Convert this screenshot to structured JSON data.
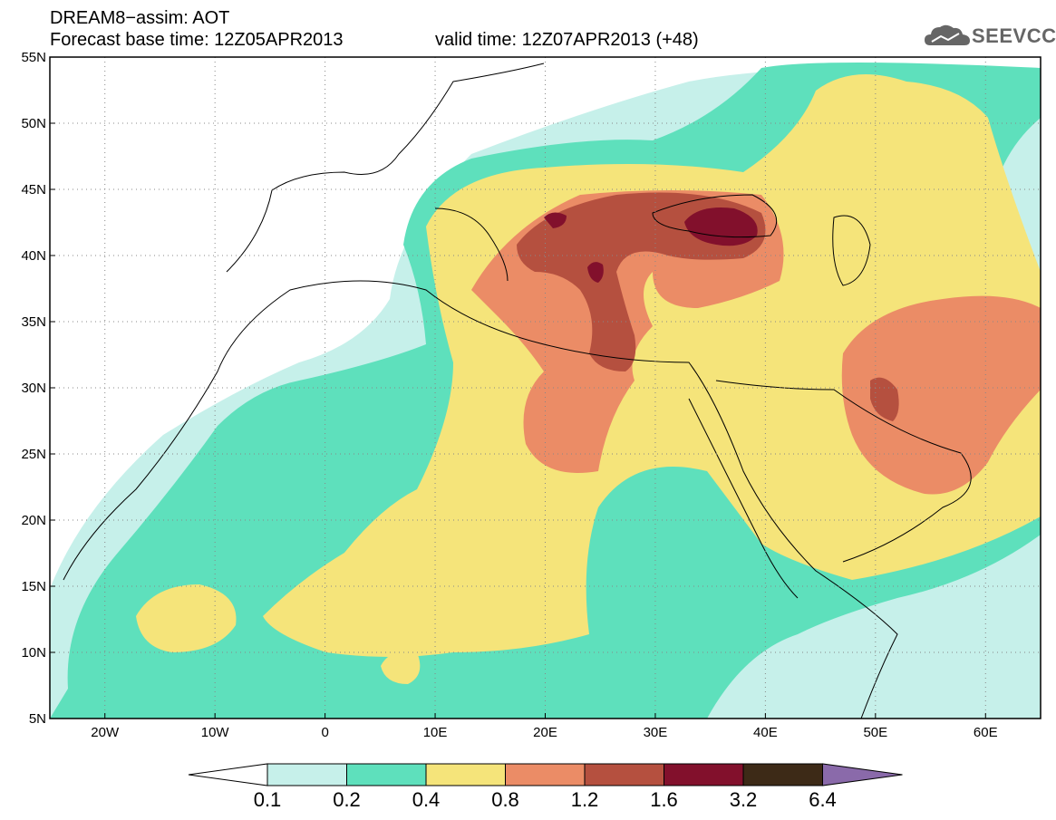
{
  "title": {
    "line1": "DREAM8−assim: AOT",
    "line2_base": "Forecast base time: 12Z05APR2013",
    "line2_valid": "valid time: 12Z07APR2013 (+48)"
  },
  "logo": {
    "text": "SEEVCCC",
    "icon": "cloud-icon"
  },
  "map": {
    "lon_range": [
      -25,
      65
    ],
    "lat_range": [
      5,
      55
    ],
    "lon_ticks": [
      "20W",
      "10W",
      "0",
      "10E",
      "20E",
      "30E",
      "40E",
      "50E",
      "60E"
    ],
    "lat_ticks": [
      "55N",
      "50N",
      "45N",
      "40N",
      "35N",
      "30N",
      "25N",
      "20N",
      "15N",
      "10N",
      "5N"
    ],
    "grid": "dotted",
    "variable": "AOT"
  },
  "colorbar": {
    "labels": [
      "0.1",
      "0.2",
      "0.4",
      "0.8",
      "1.2",
      "1.6",
      "3.2",
      "6.4"
    ],
    "colors": [
      "#c6f0ea",
      "#5ee0bc",
      "#f5e47a",
      "#eb8c66",
      "#b5503f",
      "#82102c",
      "#3d2a17",
      "#8a6aaa"
    ]
  }
}
